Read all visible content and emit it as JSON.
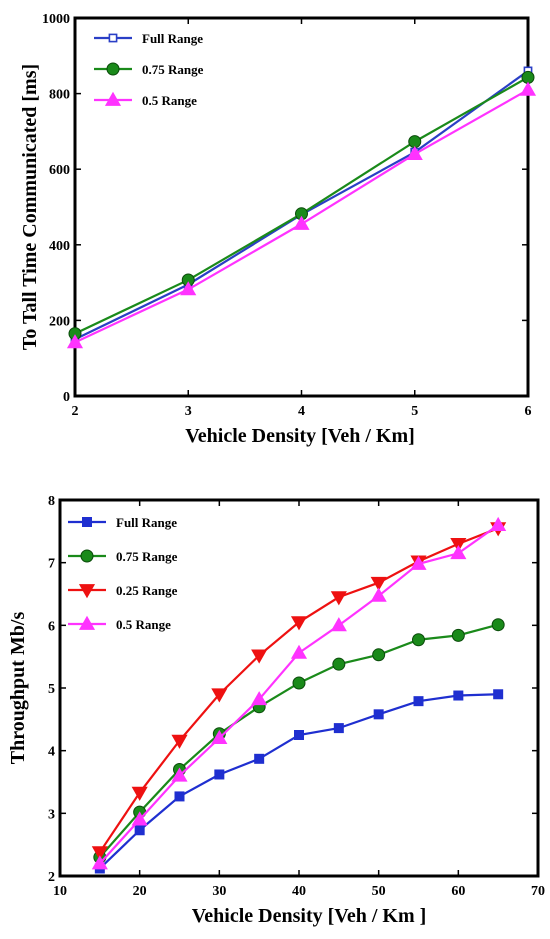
{
  "chart_data": [
    {
      "type": "line",
      "title": "",
      "xlabel": "Vehicle Density [Veh / Km]",
      "ylabel": "To Tall Time Communicated [ms]",
      "xlim": [
        2,
        6
      ],
      "ylim": [
        0,
        1000
      ],
      "xticks": [
        2,
        3,
        4,
        5,
        6
      ],
      "yticks": [
        0,
        200,
        400,
        600,
        800,
        1000
      ],
      "grid": false,
      "legend_position": "top-left",
      "x": [
        2,
        3,
        4,
        5,
        6
      ],
      "series": [
        {
          "name": "Full Range",
          "color": "#2a3fc6",
          "marker": "square-open",
          "values": [
            150,
            295,
            480,
            645,
            860
          ]
        },
        {
          "name": "0.75 Range",
          "color": "#1a8a1a",
          "marker": "circle",
          "values": [
            165,
            307,
            482,
            673,
            843
          ]
        },
        {
          "name": "0.5 Range",
          "color": "#ff33ff",
          "marker": "triangle-up",
          "values": [
            142,
            282,
            455,
            640,
            810
          ]
        }
      ]
    },
    {
      "type": "line",
      "title": "",
      "xlabel": "Vehicle Density [Veh / Km ]",
      "ylabel": "Throughput Mb/s",
      "xlim": [
        10,
        70
      ],
      "ylim": [
        2,
        8
      ],
      "xticks": [
        10,
        20,
        30,
        40,
        50,
        60,
        70
      ],
      "yticks": [
        2,
        3,
        4,
        5,
        6,
        7,
        8
      ],
      "grid": false,
      "legend_position": "top-left",
      "x": [
        15,
        20,
        25,
        30,
        35,
        40,
        45,
        50,
        55,
        60,
        65
      ],
      "series": [
        {
          "name": "Full Range",
          "color": "#1f2fd0",
          "marker": "square",
          "values": [
            2.12,
            2.73,
            3.27,
            3.62,
            3.87,
            4.25,
            4.36,
            4.58,
            4.79,
            4.88,
            4.9
          ]
        },
        {
          "name": "0.75 Range",
          "color": "#1a8a1a",
          "marker": "circle",
          "values": [
            2.3,
            3.02,
            3.7,
            4.27,
            4.7,
            5.08,
            5.38,
            5.53,
            5.77,
            5.84,
            6.01
          ]
        },
        {
          "name": "0.25 Range",
          "color": "#ee1111",
          "marker": "triangle-down",
          "values": [
            2.38,
            3.33,
            4.16,
            4.9,
            5.52,
            6.05,
            6.45,
            6.68,
            7.02,
            7.3,
            7.55
          ]
        },
        {
          "name": "0.5 Range",
          "color": "#ff33ff",
          "marker": "triangle-up",
          "values": [
            2.2,
            2.9,
            3.6,
            4.2,
            4.82,
            5.56,
            6.0,
            6.47,
            6.98,
            7.15,
            7.6
          ]
        }
      ]
    }
  ]
}
